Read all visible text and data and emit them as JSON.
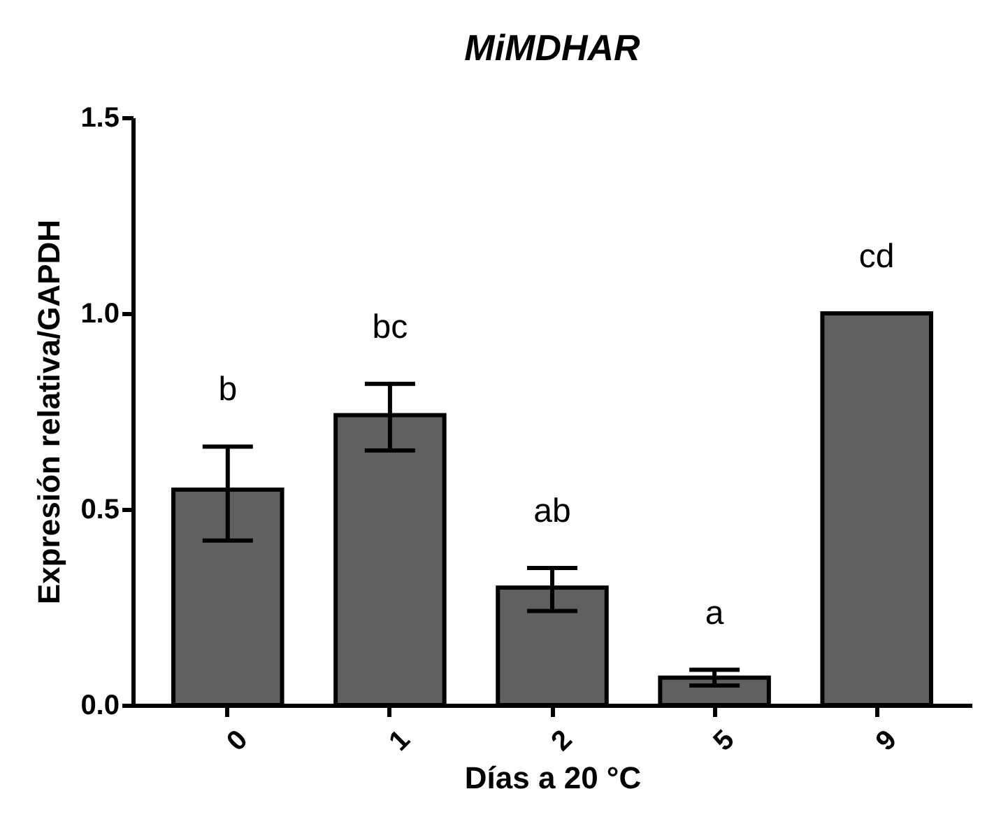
{
  "chart_data": {
    "type": "bar",
    "title": "MiMDHAR",
    "xlabel": "Días a 20 °C",
    "ylabel": "Expresión relativa/GAPDH",
    "categories": [
      "0",
      "1",
      "2",
      "5",
      "9"
    ],
    "values": [
      0.55,
      0.74,
      0.3,
      0.07,
      1.0
    ],
    "errors": [
      [
        0.42,
        0.66
      ],
      [
        0.65,
        0.82
      ],
      [
        0.24,
        0.35
      ],
      [
        0.05,
        0.09
      ],
      null
    ],
    "color": "#606060",
    "ylim": [
      0,
      1.5
    ],
    "yticks": [
      {
        "value": 0,
        "label": "0.0"
      },
      {
        "value": 0.5,
        "label": "0.5"
      },
      {
        "value": 1,
        "label": "1.0"
      },
      {
        "value": 1.5,
        "label": "1.5"
      }
    ],
    "annotations": [
      "b",
      "bc",
      "ab",
      "a",
      "cd"
    ],
    "grid": false
  }
}
